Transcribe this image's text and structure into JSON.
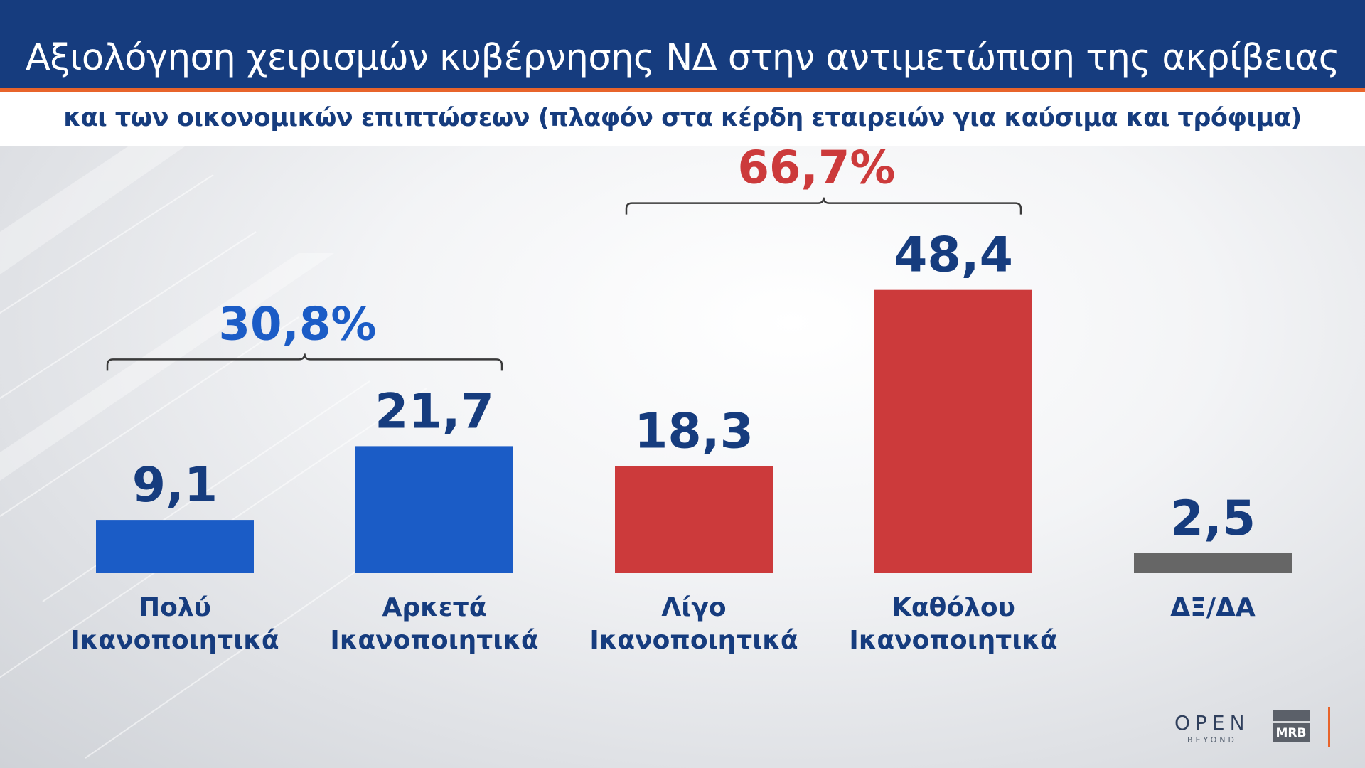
{
  "header": {
    "title": "Αξιολόγηση χειρισμών κυβέρνησης ΝΔ στην αντιμετώπιση της ακρίβειας",
    "subtitle": "και των οικονομικών επιπτώσεων (πλαφόν στα κέρδη εταιρειών για καύσιμα και τρόφιμα)"
  },
  "colors": {
    "header_bg": "#163c7e",
    "accent_orange": "#e8642b",
    "positive_blue": "#1b5cc6",
    "negative_red": "#cc3a3b",
    "neutral_gray": "#666666",
    "value_label": "#163c7e"
  },
  "chart_data": {
    "type": "bar",
    "title": "Αξιολόγηση χειρισμών κυβέρνησης ΝΔ στην αντιμετώπιση της ακρίβειας",
    "subtitle": "και των οικονομικών επιπτώσεων (πλαφόν στα κέρδη εταιρειών για καύσιμα και τρόφιμα)",
    "categories": [
      [
        "Πολύ",
        "Ικανοποιητικά"
      ],
      [
        "Αρκετά",
        "Ικανοποιητικά"
      ],
      [
        "Λίγο",
        "Ικανοποιητικά"
      ],
      [
        "Καθόλου",
        "Ικανοποιητικά"
      ],
      [
        "ΔΞ/ΔΑ"
      ]
    ],
    "values": [
      9.1,
      21.7,
      18.3,
      48.4,
      2.5
    ],
    "value_labels": [
      "9,1",
      "21,7",
      "18,3",
      "48,4",
      "2,5"
    ],
    "bar_colors": [
      "#1b5cc6",
      "#1b5cc6",
      "#cc3a3b",
      "#cc3a3b",
      "#666666"
    ],
    "groups": [
      {
        "label": "30,8%",
        "value": 30.8,
        "from": 0,
        "to": 1,
        "color": "#1b5cc6"
      },
      {
        "label": "66,7%",
        "value": 66.7,
        "from": 2,
        "to": 3,
        "color": "#cc3a3b"
      }
    ],
    "grid": false,
    "legend": "none"
  },
  "logos": {
    "open": "OPEN",
    "open_tagline": "BEYOND",
    "mrb": "MRB"
  }
}
